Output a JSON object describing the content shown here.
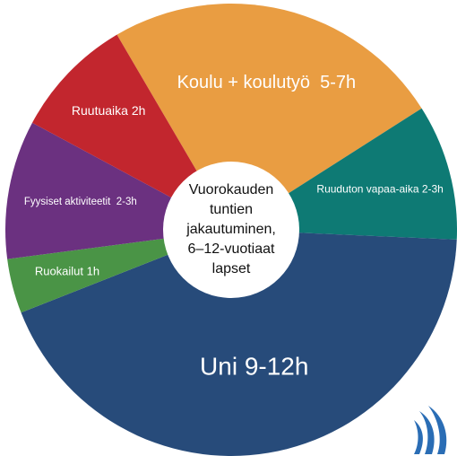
{
  "chart_data": {
    "type": "donut",
    "title": [
      "Vuorokauden",
      "tuntien",
      "jakautuminen,",
      "6–12-vuotiaat",
      "lapset"
    ],
    "categories": [
      "Koulu + koulutyö  5-7h",
      "Ruuduton vapaa-aika 2-3h",
      "Uni 9-12h",
      "Ruokailut 1h",
      "Fyysiset aktiviteetit  2-3h",
      "Ruutuaika 2h"
    ],
    "values": [
      24.4,
      9.7,
      43.3,
      3.9,
      9.9,
      8.7
    ],
    "colors": [
      "#e99d42",
      "#0e7a74",
      "#274b7a",
      "#4a9446",
      "#6b3180",
      "#c2262e"
    ]
  }
}
